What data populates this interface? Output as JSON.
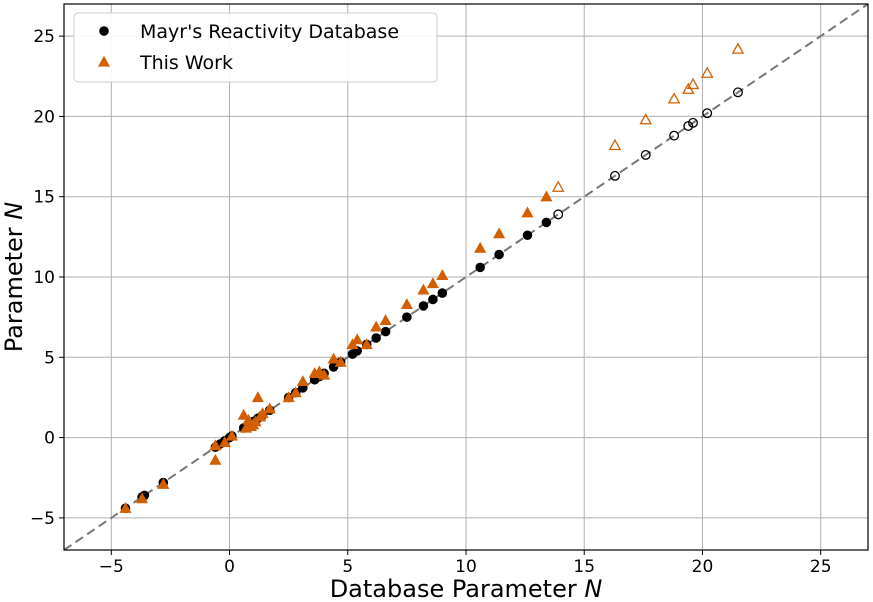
{
  "chart_data": {
    "type": "scatter",
    "xlabel": {
      "prefix": "Database Parameter ",
      "var": "N"
    },
    "ylabel": {
      "prefix": "Parameter ",
      "var": "N"
    },
    "xlim": [
      -7,
      27
    ],
    "ylim": [
      -7,
      27
    ],
    "xticks": [
      -5,
      0,
      5,
      10,
      15,
      20,
      25
    ],
    "yticks": [
      -5,
      0,
      5,
      10,
      15,
      20,
      25
    ],
    "tick_labels_x": [
      "−5",
      "0",
      "5",
      "10",
      "15",
      "20",
      "25"
    ],
    "tick_labels_y": [
      "−5",
      "0",
      "5",
      "10",
      "15",
      "20",
      "25"
    ],
    "grid": true,
    "legend_position": "top-left",
    "reference_line": {
      "style": "dashed",
      "color": "#777777",
      "from": [
        -7,
        -7
      ],
      "to": [
        27,
        27
      ]
    },
    "series": [
      {
        "name": "Mayr's Reactivity Database",
        "marker": "circle",
        "color": "#000000",
        "filled": [
          [
            -4.4,
            -4.4
          ],
          [
            -3.7,
            -3.7
          ],
          [
            -3.6,
            -3.6
          ],
          [
            -2.8,
            -2.8
          ],
          [
            -0.6,
            -0.6
          ],
          [
            -0.4,
            -0.4
          ],
          [
            -0.2,
            -0.2
          ],
          [
            0.0,
            0.0
          ],
          [
            0.1,
            0.1
          ],
          [
            0.6,
            0.6
          ],
          [
            0.8,
            0.8
          ],
          [
            1.0,
            1.0
          ],
          [
            1.2,
            1.2
          ],
          [
            1.4,
            1.4
          ],
          [
            1.7,
            1.7
          ],
          [
            2.5,
            2.5
          ],
          [
            2.8,
            2.8
          ],
          [
            3.1,
            3.1
          ],
          [
            3.6,
            3.6
          ],
          [
            3.8,
            3.8
          ],
          [
            4.0,
            4.0
          ],
          [
            4.4,
            4.4
          ],
          [
            4.7,
            4.7
          ],
          [
            5.2,
            5.2
          ],
          [
            5.4,
            5.4
          ],
          [
            5.8,
            5.8
          ],
          [
            6.2,
            6.2
          ],
          [
            6.6,
            6.6
          ],
          [
            7.5,
            7.5
          ],
          [
            8.2,
            8.2
          ],
          [
            8.6,
            8.6
          ],
          [
            9.0,
            9.0
          ],
          [
            10.6,
            10.6
          ],
          [
            11.4,
            11.4
          ],
          [
            12.6,
            12.6
          ],
          [
            13.4,
            13.4
          ]
        ],
        "hollow": [
          [
            13.9,
            13.9
          ],
          [
            16.3,
            16.3
          ],
          [
            17.6,
            17.6
          ],
          [
            18.8,
            18.8
          ],
          [
            19.4,
            19.4
          ],
          [
            19.6,
            19.6
          ],
          [
            20.2,
            20.2
          ],
          [
            21.5,
            21.5
          ]
        ]
      },
      {
        "name": "This Work",
        "marker": "triangle",
        "color": "#d35f00",
        "filled": [
          [
            -4.4,
            -4.4
          ],
          [
            -3.7,
            -3.8
          ],
          [
            -2.8,
            -2.9
          ],
          [
            -0.6,
            -1.4
          ],
          [
            -0.6,
            -0.5
          ],
          [
            -0.2,
            -0.3
          ],
          [
            0.1,
            0.1
          ],
          [
            0.6,
            1.4
          ],
          [
            0.7,
            0.6
          ],
          [
            0.8,
            1.1
          ],
          [
            0.9,
            0.7
          ],
          [
            1.0,
            0.8
          ],
          [
            1.1,
            1.0
          ],
          [
            1.2,
            2.5
          ],
          [
            1.3,
            1.3
          ],
          [
            1.4,
            1.5
          ],
          [
            1.7,
            1.8
          ],
          [
            2.5,
            2.5
          ],
          [
            2.8,
            2.8
          ],
          [
            3.1,
            3.5
          ],
          [
            3.6,
            4.0
          ],
          [
            3.8,
            4.1
          ],
          [
            4.0,
            3.9
          ],
          [
            4.4,
            4.9
          ],
          [
            4.7,
            4.7
          ],
          [
            5.2,
            5.8
          ],
          [
            5.4,
            6.1
          ],
          [
            5.8,
            5.8
          ],
          [
            6.2,
            6.9
          ],
          [
            6.6,
            7.3
          ],
          [
            7.5,
            8.3
          ],
          [
            8.2,
            9.2
          ],
          [
            8.6,
            9.6
          ],
          [
            9.0,
            10.1
          ],
          [
            10.6,
            11.8
          ],
          [
            11.4,
            12.7
          ],
          [
            12.6,
            14.0
          ],
          [
            13.4,
            15.0
          ]
        ],
        "hollow": [
          [
            13.9,
            15.6
          ],
          [
            16.3,
            18.2
          ],
          [
            17.6,
            19.8
          ],
          [
            18.8,
            21.1
          ],
          [
            19.4,
            21.7
          ],
          [
            19.6,
            22.0
          ],
          [
            20.2,
            22.7
          ],
          [
            21.5,
            24.2
          ]
        ]
      }
    ]
  }
}
